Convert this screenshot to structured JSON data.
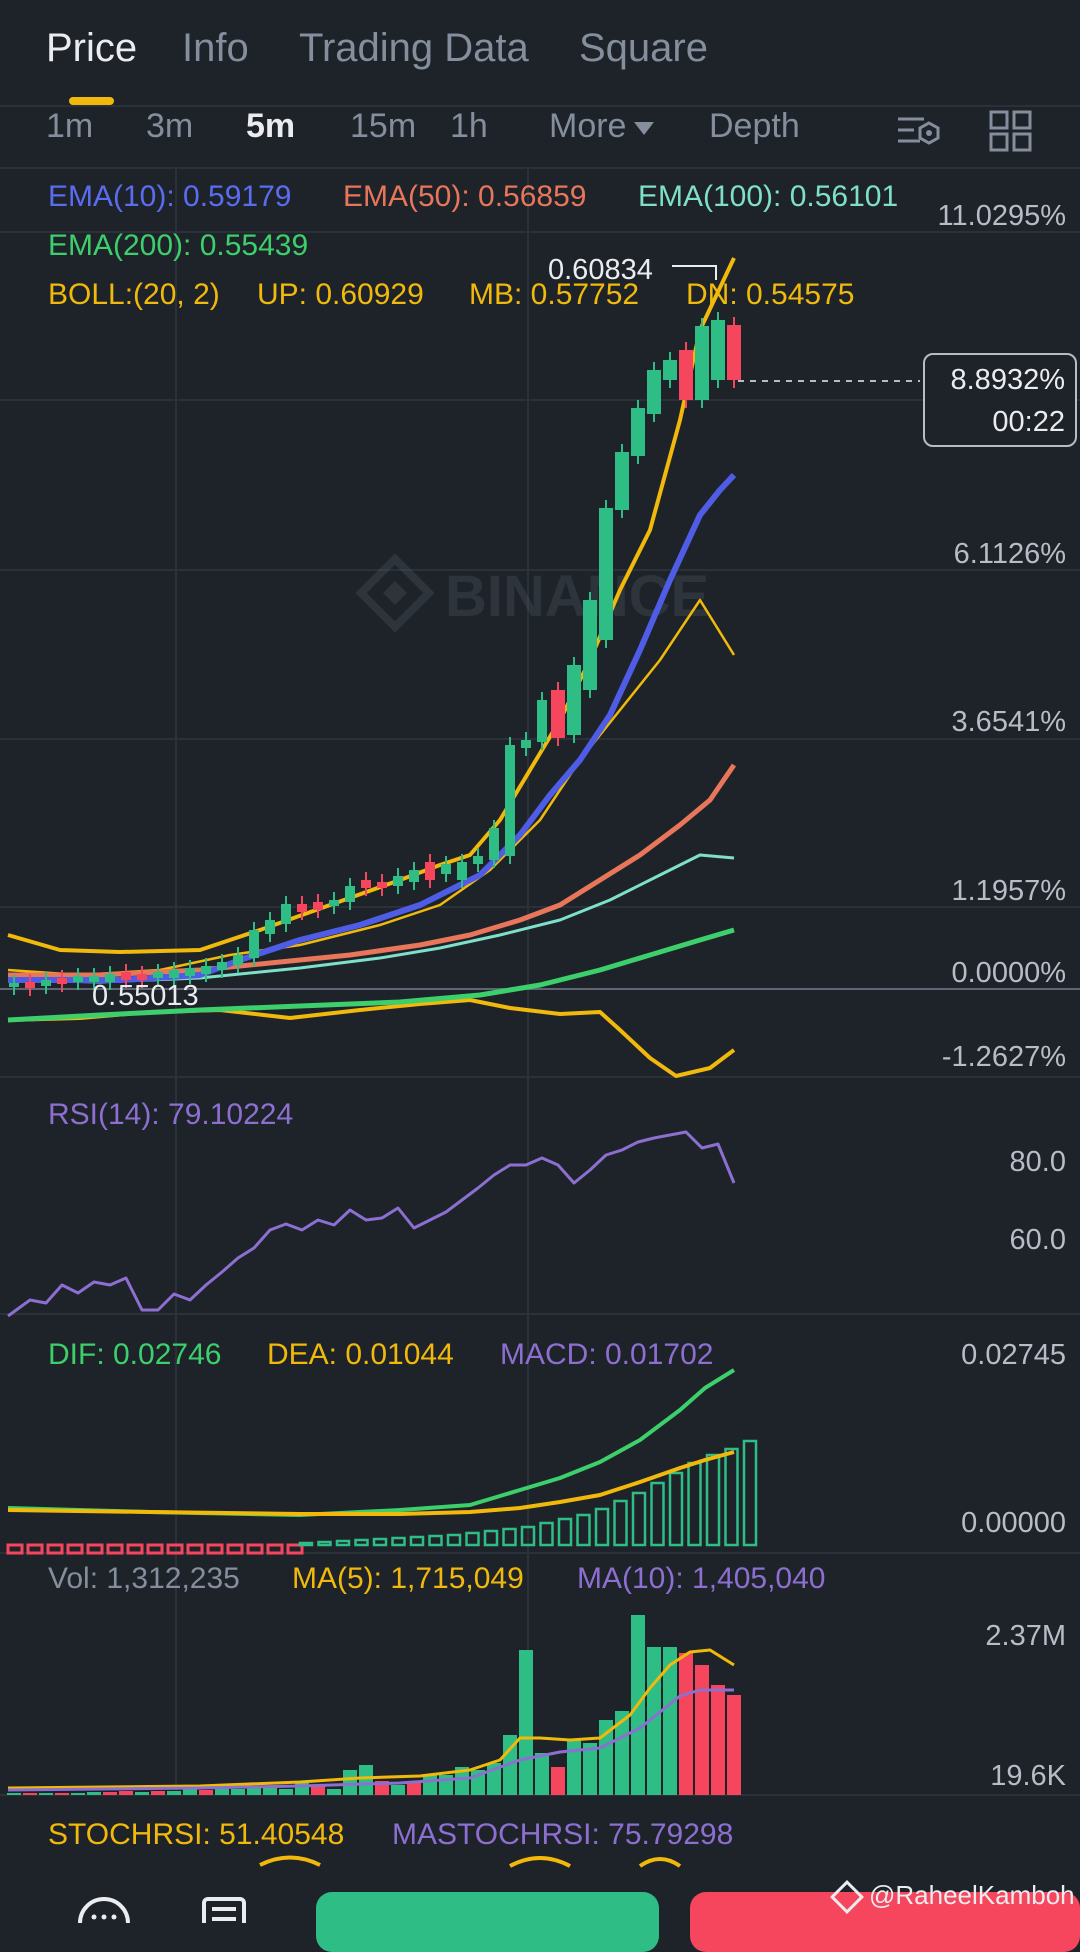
{
  "tabs": [
    "Price",
    "Info",
    "Trading Data",
    "Square"
  ],
  "intervals": [
    "1m",
    "3m",
    "5m",
    "15m",
    "1h",
    "More",
    "Depth"
  ],
  "active_interval": "5m",
  "ema": {
    "ema10": "EMA(10): 0.59179",
    "ema50": "EMA(50): 0.56859",
    "ema100": "EMA(100): 0.56101",
    "ema200": "EMA(200): 0.55439"
  },
  "boll": {
    "label": "BOLL:(20, 2)",
    "up": "UP: 0.60929",
    "mb": "MB: 0.57752",
    "dn": "DN: 0.54575"
  },
  "high_label": "0.60834",
  "low_label": "55013",
  "low_prefix": "0.",
  "price_axis": [
    "11.0295%",
    "6.1126%",
    "3.6541%",
    "1.1957%",
    "0.0000%",
    "-1.2627%"
  ],
  "current": {
    "change": "8.8932%",
    "countdown": "00:22"
  },
  "watermark_logo": "BINANCE",
  "rsi": {
    "label": "RSI(14): 79.10224",
    "axis": [
      "80.0",
      "60.0"
    ]
  },
  "macd": {
    "dif": "DIF: 0.02746",
    "dea": "DEA: 0.01044",
    "macd": "MACD: 0.01702",
    "axis": [
      "0.02745",
      "0.00000"
    ]
  },
  "volume": {
    "vol": "Vol: 1,312,235",
    "ma5": "MA(5): 1,715,049",
    "ma10": "MA(10): 1,405,040",
    "axis": [
      "2.37M",
      "19.6K"
    ]
  },
  "stoch": {
    "stochrsi": "STOCHRSI: 51.40548",
    "mastochrsi": "MASTOCHRSI: 75.79298"
  },
  "credit": "@RaheelKamboh",
  "colors": {
    "bg": "#1e2329",
    "up": "#2ebd85",
    "down": "#f6465d",
    "ema10": "#4f5de6",
    "ema50": "#e8765a",
    "ema100": "#7ee0c9",
    "ema200": "#3ccf6b",
    "boll": "#f0b90b",
    "rsi": "#8c6fd1",
    "accent": "#f0b90b"
  }
}
